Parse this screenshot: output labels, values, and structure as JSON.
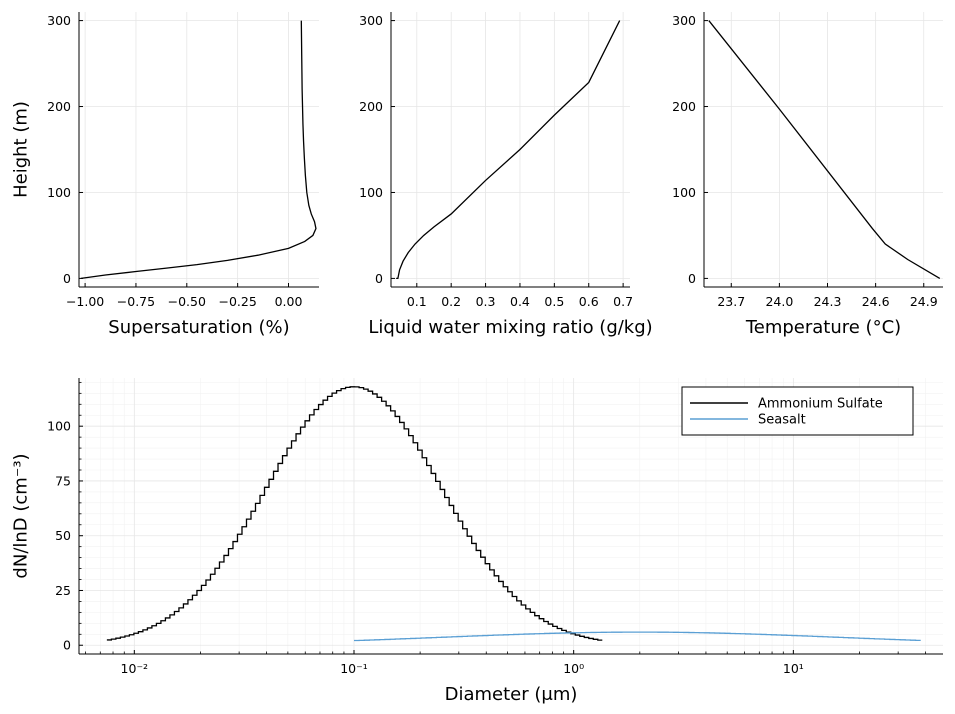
{
  "chart_data": [
    {
      "type": "line",
      "xlabel": "Supersaturation (%)",
      "ylabel": "Height (m)",
      "xlim": [
        -1.03,
        0.15
      ],
      "ylim": [
        -10,
        310
      ],
      "xticks": [
        -1.0,
        -0.75,
        -0.5,
        -0.25,
        0.0
      ],
      "xtick_labels": [
        "−1.00",
        "−0.75",
        "−0.50",
        "−0.25",
        "0.00"
      ],
      "yticks": [
        0,
        100,
        200,
        300
      ],
      "ytick_labels": [
        "0",
        "100",
        "200",
        "300"
      ],
      "grid": true,
      "series": [
        {
          "color": "#000000",
          "x": [
            -1.02,
            -0.9,
            -0.75,
            -0.6,
            -0.45,
            -0.3,
            -0.15,
            0.0,
            0.08,
            0.12,
            0.135,
            0.128,
            0.112,
            0.1,
            0.09,
            0.083,
            0.078,
            0.074,
            0.071,
            0.069,
            0.067,
            0.066,
            0.065,
            0.064,
            0.063
          ],
          "y": [
            0,
            4,
            8,
            12,
            16,
            21,
            27,
            35,
            43,
            50,
            58,
            66,
            75,
            85,
            100,
            120,
            140,
            160,
            180,
            200,
            220,
            240,
            260,
            280,
            300
          ]
        }
      ]
    },
    {
      "type": "line",
      "xlabel": "Liquid water mixing ratio (g/kg)",
      "ylabel": "",
      "xlim": [
        0.025,
        0.72
      ],
      "ylim": [
        -10,
        310
      ],
      "xticks": [
        0.1,
        0.2,
        0.3,
        0.4,
        0.5,
        0.6,
        0.7
      ],
      "xtick_labels": [
        "0.1",
        "0.2",
        "0.3",
        "0.4",
        "0.5",
        "0.6",
        "0.7"
      ],
      "yticks": [
        0,
        100,
        200,
        300
      ],
      "ytick_labels": [
        "0",
        "100",
        "200",
        "300"
      ],
      "grid": true,
      "series": [
        {
          "color": "#000000",
          "x": [
            0.04,
            0.045,
            0.05,
            0.06,
            0.075,
            0.095,
            0.12,
            0.15,
            0.2,
            0.3,
            0.4,
            0.5,
            0.6,
            0.69
          ],
          "y": [
            0,
            0,
            10,
            20,
            30,
            40,
            50,
            60,
            75,
            114,
            150,
            190,
            228,
            300
          ]
        }
      ]
    },
    {
      "type": "line",
      "xlabel": "Temperature (°C)",
      "ylabel": "",
      "xlim": [
        23.53,
        25.02
      ],
      "ylim": [
        -10,
        310
      ],
      "xticks": [
        23.7,
        24.0,
        24.3,
        24.6,
        24.9
      ],
      "xtick_labels": [
        "23.7",
        "24.0",
        "24.3",
        "24.6",
        "24.9"
      ],
      "yticks": [
        0,
        100,
        200,
        300
      ],
      "ytick_labels": [
        "0",
        "100",
        "200",
        "300"
      ],
      "grid": true,
      "series": [
        {
          "color": "#000000",
          "x": [
            23.56,
            24.0,
            24.58,
            24.66,
            24.8,
            25.0
          ],
          "y": [
            300,
            197,
            58,
            40,
            22,
            0
          ]
        }
      ]
    },
    {
      "type": "line",
      "xlabel": "Diameter (μm)",
      "ylabel": "dN/lnD (cm⁻³)",
      "xscale": "log",
      "xlim": [
        0.0056,
        48
      ],
      "ylim": [
        -4,
        122
      ],
      "xticks": [
        0.01,
        0.1,
        1,
        10
      ],
      "xtick_labels": [
        "10⁻²",
        "10⁻¹",
        "10⁰",
        "10¹"
      ],
      "yticks": [
        0,
        25,
        50,
        75,
        100
      ],
      "ytick_labels": [
        "0",
        "25",
        "50",
        "75",
        "100"
      ],
      "grid": true,
      "legend": "top-right",
      "step": true,
      "series": [
        {
          "name": "Ammonium Sulfate",
          "color": "#000000",
          "xmin": 0.0075,
          "xmax": 1.35,
          "bins": 110,
          "peak": 118,
          "mode": 0.1,
          "sigma": 0.4
        },
        {
          "name": "Seasalt",
          "color": "#5a9fd4",
          "xmin": 0.1,
          "xmax": 38,
          "bins": 110,
          "peak": 6,
          "mode": 2.0,
          "sigma": 0.9
        }
      ]
    }
  ]
}
